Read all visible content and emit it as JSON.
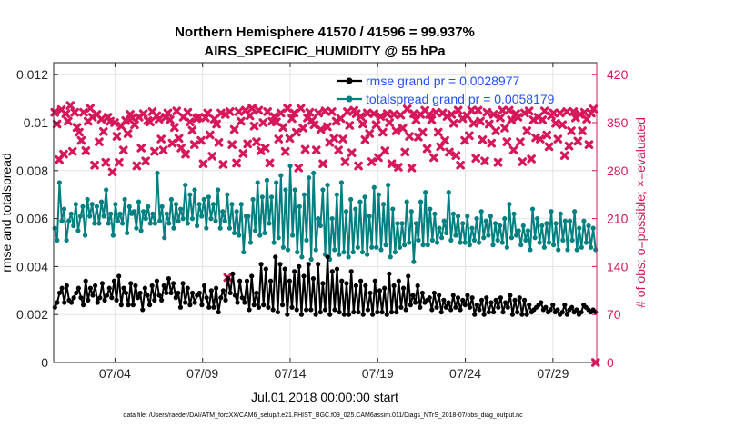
{
  "chart_data": {
    "type": "line",
    "title": "Northern Hemisphere 41570 / 41596 = 99.937%",
    "subtitle": "AIRS_SPECIFIC_HUMIDITY @ 55 hPa",
    "xlabel": "Jul.01,2018 00:00:00 start",
    "ylabel_left": "rmse and totalspread",
    "ylabel_right": "# of obs: o=possible; ×=evaluated",
    "footnote": "data file: /Users/raeder/DAI/ATM_forcXX/CAM6_setup/f.e21.FHIST_BGC.f09_025.CAM6assim.011/Diags_NTrS_2018-07/obs_diag_output.nc",
    "x_range": [
      0.5,
      31.5
    ],
    "ylim_left": [
      0,
      0.0125
    ],
    "ylim_right": [
      0,
      437.5
    ],
    "x_tick_values": [
      4,
      9,
      14,
      19,
      24,
      29
    ],
    "x_tick_labels": [
      "07/04",
      "07/09",
      "07/14",
      "07/19",
      "07/24",
      "07/29"
    ],
    "y_left_tick_values": [
      0,
      0.002,
      0.004,
      0.006,
      0.008,
      0.01,
      0.012
    ],
    "y_left_tick_labels": [
      "0",
      "0.002",
      "0.004",
      "0.006",
      "0.008",
      "0.01",
      "0.012"
    ],
    "y_right_tick_values": [
      0,
      70,
      140,
      210,
      280,
      350,
      420
    ],
    "y_right_tick_labels": [
      "0",
      "70",
      "140",
      "210",
      "280",
      "350",
      "420"
    ],
    "grid": true,
    "legend_position": "top-right",
    "colors": {
      "rmse": "#000000",
      "totalspread": "#008080",
      "obs": "#d6175a",
      "legend_text": "#1f4fff",
      "right_axis": "#d6175a"
    },
    "series": [
      {
        "name": "rmse grand pr = 0.0028977",
        "axis": "left",
        "color": "#000000",
        "values": [
          0.0023,
          0.0025,
          0.0029,
          0.0031,
          0.0025,
          0.0032,
          0.0026,
          0.0025,
          0.0027,
          0.0029,
          0.0031,
          0.0027,
          0.0024,
          0.0034,
          0.0026,
          0.0031,
          0.0028,
          0.0032,
          0.0025,
          0.0027,
          0.0033,
          0.0026,
          0.0028,
          0.0031,
          0.0027,
          0.0034,
          0.0026,
          0.0036,
          0.0024,
          0.0031,
          0.0029,
          0.0024,
          0.0033,
          0.0024,
          0.0032,
          0.0027,
          0.0029,
          0.0022,
          0.0031,
          0.0028,
          0.0024,
          0.0032,
          0.0026,
          0.0034,
          0.0028,
          0.0026,
          0.0032,
          0.0029,
          0.0035,
          0.0029,
          0.0033,
          0.0027,
          0.0029,
          0.0023,
          0.0033,
          0.0025,
          0.0031,
          0.0024,
          0.0029,
          0.0025,
          0.0028,
          0.0029,
          0.0024,
          0.0032,
          0.0027,
          0.0023,
          0.003,
          0.0023,
          0.0031,
          0.0021,
          0.0027,
          0.003,
          0.0026,
          0.0035,
          0.0029,
          0.0037,
          0.0028,
          0.0025,
          0.0034,
          0.0027,
          0.0025,
          0.0034,
          0.0022,
          0.0036,
          0.0024,
          0.0029,
          0.0023,
          0.0041,
          0.0024,
          0.0039,
          0.0023,
          0.0034,
          0.0022,
          0.0044,
          0.0021,
          0.0041,
          0.0024,
          0.0039,
          0.002,
          0.0034,
          0.0023,
          0.0038,
          0.0022,
          0.004,
          0.002,
          0.0036,
          0.0022,
          0.0041,
          0.0022,
          0.0035,
          0.002,
          0.0041,
          0.0021,
          0.0033,
          0.0022,
          0.0044,
          0.002,
          0.0038,
          0.0022,
          0.0039,
          0.0021,
          0.0034,
          0.002,
          0.0033,
          0.002,
          0.0038,
          0.0021,
          0.0032,
          0.0021,
          0.0034,
          0.002,
          0.0032,
          0.0022,
          0.0029,
          0.002,
          0.0034,
          0.0021,
          0.003,
          0.0021,
          0.0031,
          0.002,
          0.0037,
          0.0021,
          0.0032,
          0.0021,
          0.0034,
          0.0023,
          0.0031,
          0.0022,
          0.0036,
          0.0024,
          0.0028,
          0.0025,
          0.0032,
          0.0023,
          0.0029,
          0.0025,
          0.0026,
          0.0027,
          0.0022,
          0.0029,
          0.0023,
          0.0028,
          0.0021,
          0.0026,
          0.0023,
          0.0025,
          0.0022,
          0.0028,
          0.0023,
          0.0027,
          0.0022,
          0.0026,
          0.0024,
          0.0028,
          0.0023,
          0.0027,
          0.002,
          0.0024,
          0.0022,
          0.0026,
          0.002,
          0.0027,
          0.0021,
          0.0025,
          0.0021,
          0.0026,
          0.0023,
          0.0027,
          0.0021,
          0.0025,
          0.0023,
          0.0028,
          0.002,
          0.0026,
          0.0021,
          0.0027,
          0.002,
          0.0026,
          0.002,
          0.0024,
          0.0021,
          0.0022,
          0.0023,
          0.0024,
          0.0025,
          0.0022,
          0.0023,
          0.0021,
          0.0022,
          0.0024,
          0.0021,
          0.0022,
          0.002,
          0.0021,
          0.0024,
          0.002,
          0.0022,
          0.0023,
          0.0021,
          0.0022,
          0.002,
          0.0021,
          0.0024,
          0.0023,
          0.0022,
          0.0021,
          0.0022,
          0.0021
        ]
      },
      {
        "name": "totalspread grand pr = 0.0058179",
        "axis": "left",
        "color": "#008080",
        "values": [
          0.0056,
          0.0051,
          0.0075,
          0.0059,
          0.0064,
          0.0051,
          0.0059,
          0.0062,
          0.0057,
          0.0066,
          0.0055,
          0.0061,
          0.0065,
          0.0053,
          0.0068,
          0.0061,
          0.0066,
          0.0058,
          0.0065,
          0.0058,
          0.0067,
          0.0061,
          0.0072,
          0.0058,
          0.0062,
          0.0053,
          0.0066,
          0.0059,
          0.0062,
          0.0058,
          0.0068,
          0.0054,
          0.0065,
          0.0062,
          0.0063,
          0.0056,
          0.0067,
          0.0055,
          0.0063,
          0.006,
          0.0065,
          0.0058,
          0.0062,
          0.0058,
          0.0079,
          0.0059,
          0.0065,
          0.0052,
          0.0062,
          0.0058,
          0.0068,
          0.0056,
          0.0066,
          0.0059,
          0.0064,
          0.006,
          0.0074,
          0.0058,
          0.007,
          0.006,
          0.0072,
          0.0057,
          0.0066,
          0.0061,
          0.0068,
          0.0056,
          0.0069,
          0.006,
          0.0066,
          0.0059,
          0.0072,
          0.0056,
          0.0063,
          0.0059,
          0.007,
          0.0056,
          0.0066,
          0.0054,
          0.0063,
          0.0053,
          0.0066,
          0.0046,
          0.0061,
          0.0061,
          0.005,
          0.0068,
          0.0055,
          0.0075,
          0.0053,
          0.0069,
          0.0054,
          0.0076,
          0.0058,
          0.0069,
          0.005,
          0.0075,
          0.0052,
          0.0078,
          0.0048,
          0.0072,
          0.0047,
          0.0082,
          0.0053,
          0.0072,
          0.0046,
          0.0065,
          0.0044,
          0.007,
          0.0051,
          0.0077,
          0.0043,
          0.0079,
          0.0047,
          0.006,
          0.0057,
          0.0072,
          0.0045,
          0.0074,
          0.0043,
          0.006,
          0.0047,
          0.007,
          0.0045,
          0.0075,
          0.0046,
          0.0063,
          0.0044,
          0.0068,
          0.0046,
          0.0064,
          0.0048,
          0.0067,
          0.0046,
          0.0069,
          0.0045,
          0.0061,
          0.0048,
          0.0073,
          0.0048,
          0.007,
          0.0047,
          0.0066,
          0.0049,
          0.0074,
          0.0044,
          0.0064,
          0.0046,
          0.0058,
          0.0048,
          0.0058,
          0.0049,
          0.0067,
          0.005,
          0.0063,
          0.0042,
          0.0058,
          0.0051,
          0.0067,
          0.0049,
          0.0071,
          0.0049,
          0.0064,
          0.0051,
          0.0062,
          0.005,
          0.0056,
          0.0052,
          0.0059,
          0.0054,
          0.0071,
          0.0051,
          0.0062,
          0.0053,
          0.0061,
          0.005,
          0.0058,
          0.005,
          0.0061,
          0.0049,
          0.0056,
          0.0051,
          0.006,
          0.005,
          0.0063,
          0.0052,
          0.0059,
          0.0053,
          0.0061,
          0.0049,
          0.0058,
          0.0051,
          0.0057,
          0.005,
          0.006,
          0.0048,
          0.0066,
          0.0052,
          0.0062,
          0.0053,
          0.0055,
          0.0049,
          0.0057,
          0.0051,
          0.0055,
          0.0047,
          0.0064,
          0.0052,
          0.006,
          0.005,
          0.0057,
          0.0048,
          0.0058,
          0.005,
          0.0063,
          0.0049,
          0.0058,
          0.0047,
          0.0062,
          0.0051,
          0.0059,
          0.0047,
          0.0059,
          0.0051,
          0.0063,
          0.0047,
          0.0056,
          0.0048,
          0.0059,
          0.005,
          0.0057,
          0.0048,
          0.0056,
          0.0047
        ]
      }
    ],
    "obs_evaluated": {
      "name": "# of obs evaluated",
      "axis": "right",
      "color": "#d6175a",
      "values": [
        365,
        348,
        296,
        369,
        304,
        363,
        352,
        375,
        308,
        365,
        343,
        336,
        324,
        365,
        309,
        352,
        371,
        358,
        288,
        362,
        322,
        355,
        337,
        292,
        358,
        352,
        278,
        350,
        330,
        292,
        345,
        310,
        353,
        334,
        362,
        357,
        347,
        287,
        358,
        313,
        363,
        294,
        353,
        351,
        366,
        308,
        360,
        355,
        326,
        310,
        358,
        364,
        354,
        320,
        343,
        367,
        327,
        313,
        358,
        304,
        365,
        351,
        339,
        318,
        356,
        358,
        324,
        290,
        357,
        364,
        332,
        301,
        355,
        348,
        321,
        364,
        289,
        362,
        124,
        366,
        318,
        340,
        291,
        366,
        352,
        305,
        368,
        319,
        360,
        371,
        345,
        322,
        368,
        309,
        350,
        313,
        366,
        291,
        352,
        359,
        351,
        326,
        364,
        343,
        308,
        371,
        327,
        356,
        364,
        336,
        284,
        371,
        342,
        311,
        357,
        365,
        353,
        347,
        310,
        364,
        340,
        290,
        367,
        344,
        321,
        366,
        327,
        352,
        310,
        356,
        326,
        293,
        366,
        346,
        306,
        368,
        363,
        287,
        359,
        348,
        325,
        364,
        334,
        293,
        363,
        347,
        299,
        359,
        336,
        309,
        363,
        350,
        290,
        362,
        338,
        285,
        361,
        342,
        307,
        370,
        330,
        284,
        363,
        354,
        329,
        362,
        336,
        368,
        312,
        362,
        354,
        299,
        365,
        336,
        315,
        364,
        324,
        359,
        307,
        362,
        349,
        302,
        368,
        288,
        356,
        324,
        360,
        331,
        368,
        349,
        298,
        368,
        352,
        325,
        294,
        365,
        348,
        320,
        362,
        338,
        292,
        357,
        368,
        342,
        322,
        368,
        354,
        310,
        363,
        358,
        322,
        293,
        364,
        338,
        367,
        297,
        354,
        328,
        358,
        326,
        354,
        367,
        332,
        315,
        360,
        364,
        349,
        326,
        364,
        347,
        302,
        366,
        316,
        338,
        366,
        357,
        323,
        362,
        338,
        365,
        355,
        318,
        364,
        370,
        0
      ]
    }
  }
}
